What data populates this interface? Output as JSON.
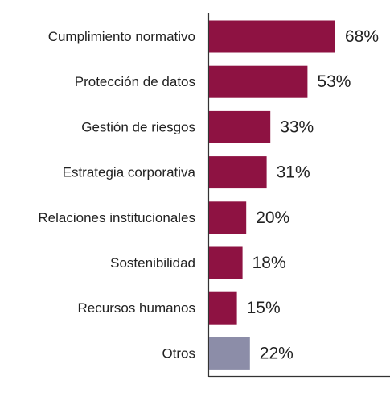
{
  "chart_data": {
    "type": "bar",
    "orientation": "horizontal",
    "categories": [
      "Cumplimiento normativo",
      "Protección de datos",
      "Gestión de riesgos",
      "Estrategia corporativa",
      "Relaciones institucionales",
      "Sostenibilidad",
      "Recursos humanos",
      "Otros"
    ],
    "values": [
      68,
      53,
      33,
      31,
      20,
      18,
      15,
      22
    ],
    "value_labels": [
      "68%",
      "53%",
      "33%",
      "31%",
      "20%",
      "18%",
      "15%",
      "22%"
    ],
    "unit": "%",
    "colors": [
      "#8e1242",
      "#8e1242",
      "#8e1242",
      "#8e1242",
      "#8e1242",
      "#8e1242",
      "#8e1242",
      "#8c8da8"
    ],
    "grid": false,
    "legend": "none"
  }
}
